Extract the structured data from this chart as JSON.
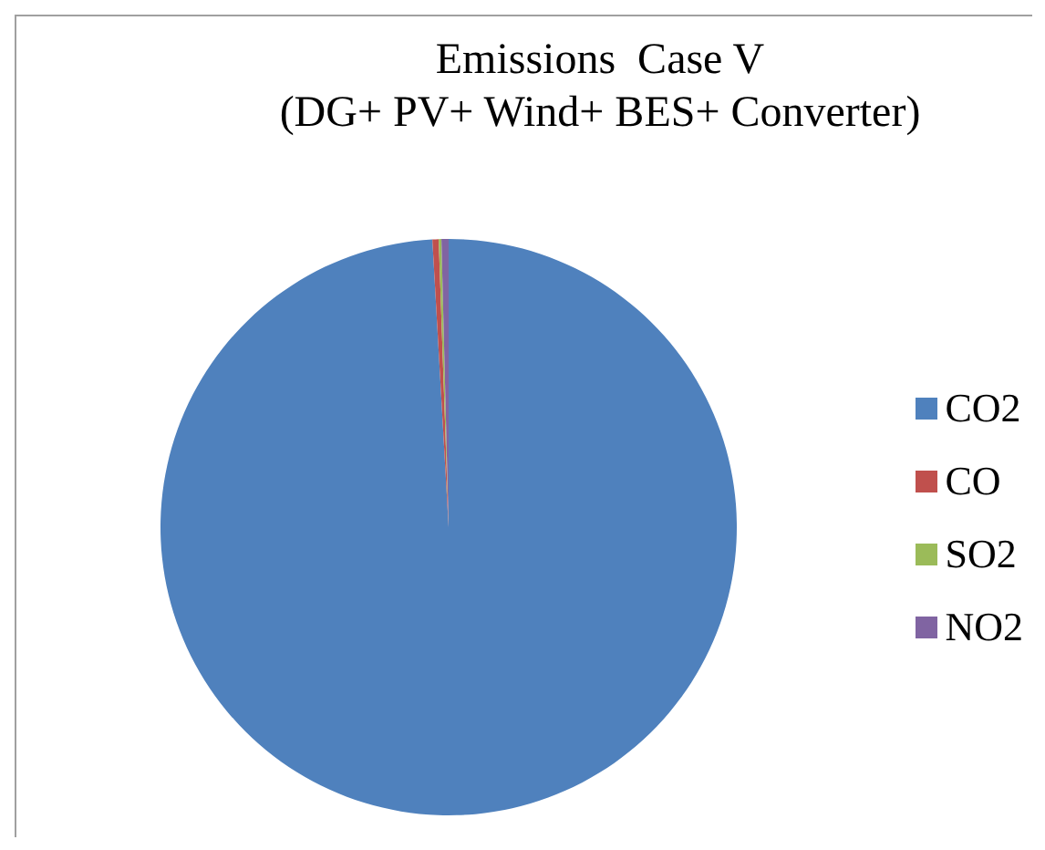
{
  "chart_data": {
    "type": "pie",
    "title": "Emissions  Case V\n(DG+ PV+ Wind+ BES+ Converter)",
    "categories": [
      "CO2",
      "CO",
      "SO2",
      "NO2"
    ],
    "values": [
      99.1,
      0.35,
      0.15,
      0.4
    ],
    "colors": [
      "#4f81bd",
      "#c0504d",
      "#9bbb59",
      "#8064a2"
    ],
    "legend": "right"
  }
}
